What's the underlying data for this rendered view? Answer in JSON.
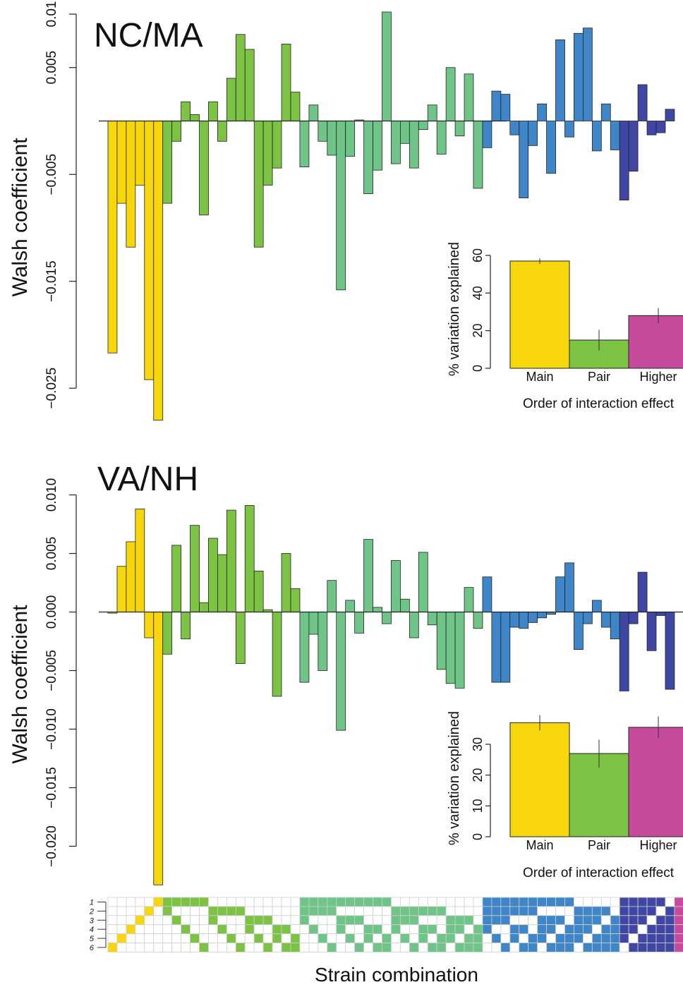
{
  "chart_data": [
    {
      "type": "bar",
      "title": "NC/MA",
      "ylabel": "Walsh coefficient",
      "ylim": [
        -0.027,
        0.01
      ],
      "yticks": [
        0.01,
        0.005,
        -0.005,
        -0.015,
        -0.025
      ],
      "ytick_labels": [
        "0.01",
        "0.005",
        "−0.005",
        "−0.015",
        "−0.025"
      ],
      "order_counts": [
        6,
        15,
        20,
        15,
        6,
        1
      ],
      "values": [
        -0.0217,
        -0.0077,
        -0.0118,
        -0.006,
        -0.0242,
        -0.028,
        -0.0077,
        -0.0019,
        0.0018,
        0.0006,
        -0.0088,
        0.0018,
        -0.0019,
        0.004,
        0.0081,
        0.0067,
        -0.0118,
        -0.006,
        -0.0044,
        0.0072,
        0.0027,
        -0.0043,
        0.0015,
        -0.0019,
        -0.0032,
        -0.0158,
        -0.0033,
        0.0001,
        -0.0068,
        -0.0046,
        0.0102,
        -0.004,
        -0.0021,
        -0.0044,
        -0.0008,
        0.0015,
        -0.0031,
        0.005,
        -0.0014,
        0.0044,
        -0.0063,
        -0.0025,
        0.0028,
        0.0025,
        -0.0013,
        -0.0072,
        -0.0023,
        0.0016,
        -0.0049,
        0.0076,
        -0.0015,
        0.0082,
        0.0087,
        -0.0028,
        0.0016,
        -0.0027,
        -0.0074,
        -0.0047,
        0.0034,
        -0.0013,
        -0.0011,
        0.0011
      ],
      "inset": {
        "type": "bar",
        "categories": [
          "Main",
          "Pair",
          "Higher"
        ],
        "values": [
          57,
          15,
          28
        ],
        "errors": [
          1.5,
          5.5,
          4
        ],
        "ylabel": "% variation explained",
        "xlabel": "Order of interaction effect",
        "ylim": [
          0,
          60
        ],
        "yticks": [
          0,
          20,
          40,
          60
        ]
      }
    },
    {
      "type": "bar",
      "title": "VA/NH",
      "ylabel": "Walsh coefficient",
      "ylim": [
        -0.0235,
        0.0105
      ],
      "yticks": [
        0.01,
        0.005,
        0.0,
        -0.005,
        -0.01,
        -0.015,
        -0.02
      ],
      "ytick_labels": [
        "0.010",
        "0.005",
        "0.000",
        "−0.005",
        "−0.010",
        "−0.015",
        "−0.020"
      ],
      "order_counts": [
        6,
        15,
        20,
        15,
        6,
        1
      ],
      "values": [
        -0.0001,
        0.0039,
        0.006,
        0.0088,
        -0.0022,
        -0.0233,
        -0.0036,
        0.0057,
        -0.0023,
        0.0074,
        0.0008,
        0.0063,
        0.0049,
        0.0087,
        -0.0044,
        0.0091,
        0.0035,
        0.0002,
        -0.0072,
        0.005,
        0.002,
        -0.006,
        -0.0019,
        -0.005,
        0.0027,
        -0.0101,
        0.001,
        -0.0018,
        0.0062,
        0.0004,
        -0.001,
        0.0044,
        0.0011,
        -0.0022,
        0.0051,
        -0.0011,
        -0.0049,
        -0.0061,
        -0.0065,
        0.0021,
        -0.0014,
        0.003,
        -0.006,
        -0.006,
        -0.0013,
        -0.0014,
        -0.0009,
        -0.0005,
        -0.0002,
        0.003,
        0.0042,
        -0.0032,
        -0.001,
        0.001,
        -0.0013,
        -0.0023,
        -0.0081,
        -0.001,
        0.0034,
        -0.0033,
        -0.0003,
        -0.0066
      ],
      "inset": {
        "type": "bar",
        "categories": [
          "Main",
          "Pair",
          "Higher"
        ],
        "values": [
          37,
          27,
          35.5
        ],
        "errors": [
          2.5,
          4.5,
          3.5
        ],
        "ylabel": "% variation explained",
        "xlabel": "Order of interaction effect",
        "ylim": [
          0,
          38
        ],
        "yticks": [
          0,
          10,
          20,
          30
        ]
      }
    }
  ],
  "strain_grid": {
    "row_labels": [
      "1",
      "2",
      "3",
      "4",
      "5",
      "6"
    ],
    "xlabel": "Strain combination"
  },
  "colors": {
    "order1": "#f7d70c",
    "order2": "#7cc243",
    "order3": "#6fc587",
    "order4": "#3e86c7",
    "order5": "#3f46a4",
    "order6": "#c74b9d",
    "inset_main": "#f7d70c",
    "inset_pair": "#7cc243",
    "inset_higher": "#c74b9d",
    "grid_line": "#cfcfcf",
    "axis": "#222222"
  }
}
